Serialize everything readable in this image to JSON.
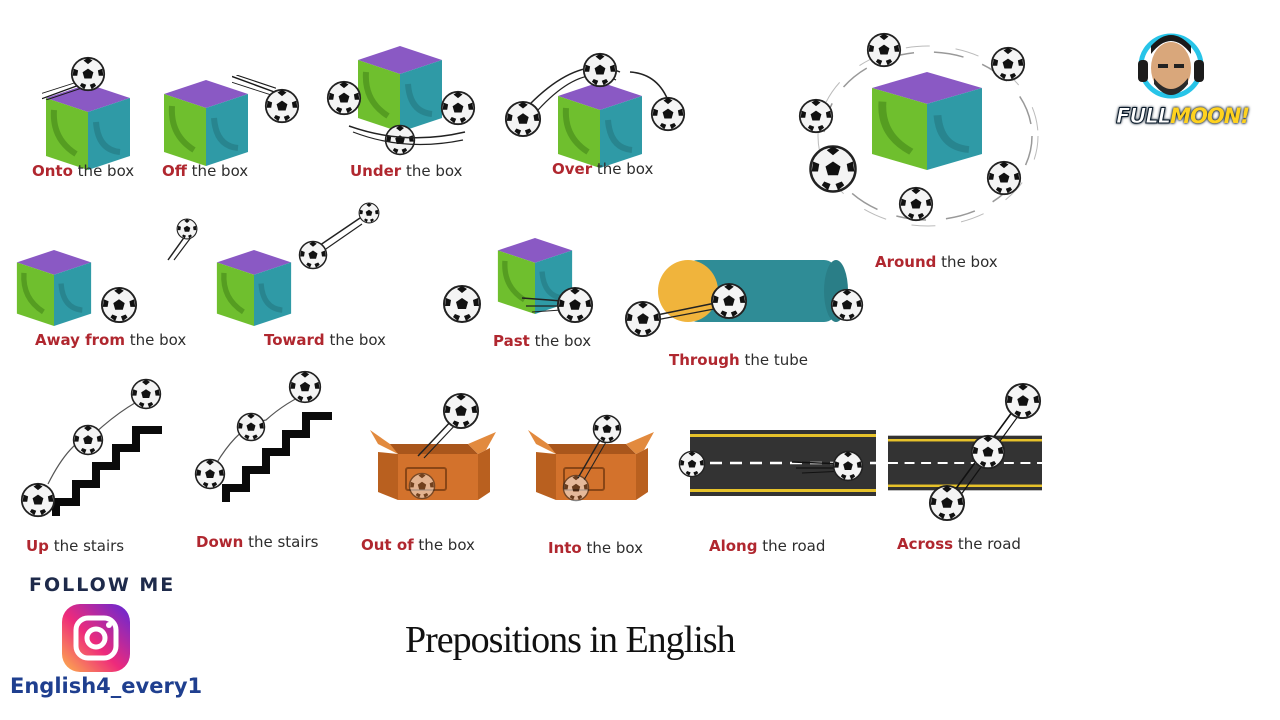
{
  "title": "Prepositions in English",
  "follow": {
    "heading": "FOLLOW ME",
    "handle": "English4_every1"
  },
  "brand": {
    "word1": "FULL",
    "word2": "MOON!"
  },
  "colors": {
    "preposition": "#b0272f",
    "text": "#2d2d2d",
    "cube_top": "#8a59c4",
    "cube_left": "#6fbf2e",
    "cube_right": "#2f9aa6",
    "box": "#d3722c",
    "road": "#333333"
  },
  "items": [
    {
      "prep": "Onto",
      "rest": " the box"
    },
    {
      "prep": "Off",
      "rest": " the box"
    },
    {
      "prep": "Under",
      "rest": " the box"
    },
    {
      "prep": "Over",
      "rest": " the box"
    },
    {
      "prep": "Around",
      "rest": " the box"
    },
    {
      "prep": "Away from",
      "rest": " the box"
    },
    {
      "prep": "Toward",
      "rest": " the box"
    },
    {
      "prep": "Past",
      "rest": " the box"
    },
    {
      "prep": "Through",
      "rest": " the tube"
    },
    {
      "prep": "Up",
      "rest": " the stairs"
    },
    {
      "prep": "Down",
      "rest": " the stairs"
    },
    {
      "prep": "Out of",
      "rest": " the box"
    },
    {
      "prep": "Into",
      "rest": " the box"
    },
    {
      "prep": "Along",
      "rest": " the road"
    },
    {
      "prep": "Across",
      "rest": " the road"
    }
  ]
}
